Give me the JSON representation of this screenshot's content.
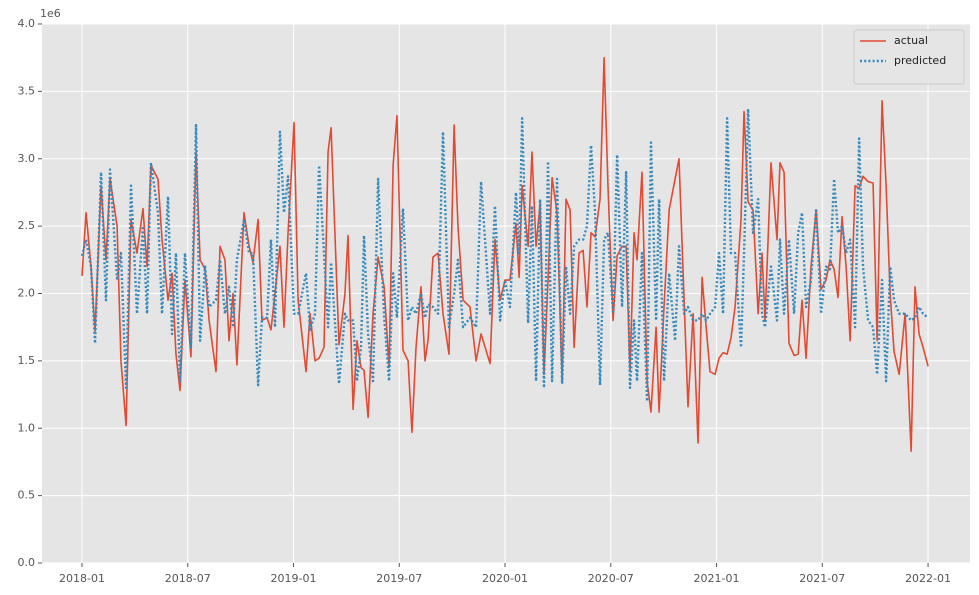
{
  "chart_data": {
    "type": "line",
    "y_offset_label": "1e6",
    "x": [
      0.0,
      0.23,
      0.51,
      0.74,
      1.08,
      1.36,
      1.59,
      1.99,
      2.21,
      2.5,
      2.78,
      3.12,
      3.46,
      3.69,
      3.91,
      4.31,
      4.54,
      4.88,
      5.11,
      5.33,
      5.56,
      5.84,
      6.18,
      6.47,
      6.7,
      6.98,
      7.21,
      7.6,
      7.83,
      8.11,
      8.34,
      8.57,
      8.79,
      9.19,
      9.48,
      9.7,
      9.99,
      10.21,
      10.5,
      10.72,
      10.95,
      11.23,
      11.46,
      11.69,
      12.03,
      12.26,
      12.71,
      12.94,
      13.22,
      13.45,
      13.73,
      13.96,
      14.13,
      14.58,
      14.92,
      15.09,
      15.38,
      15.6,
      15.83,
      16.0,
      16.23,
      16.51,
      16.8,
      17.14,
      17.42,
      17.65,
      17.87,
      18.21,
      18.5,
      18.72,
      18.95,
      19.23,
      19.46,
      19.63,
      19.91,
      20.2,
      20.48,
      20.82,
      21.11,
      21.33,
      21.62,
      22.01,
      22.36,
      22.64,
      23.15,
      23.43,
      23.72,
      24.0,
      24.28,
      24.62,
      24.8,
      24.97,
      25.31,
      25.53,
      25.76,
      25.99,
      26.21,
      26.44,
      26.67,
      26.95,
      27.24,
      27.46,
      27.69,
      27.92,
      28.2,
      28.43,
      28.65,
      28.88,
      29.11,
      29.39,
      29.62,
      29.84,
      30.13,
      30.36,
      30.64,
      30.87,
      31.09,
      31.32,
      31.49,
      31.77,
      32.06,
      32.28,
      32.57,
      32.74,
      33.02,
      33.31,
      33.65,
      33.87,
      34.16,
      34.38,
      34.67,
      34.95,
      35.18,
      35.41,
      35.63,
      35.92,
      36.14,
      36.37,
      36.6,
      36.82,
      37.05,
      37.39,
      37.56,
      37.79,
      38.07,
      38.36,
      38.58,
      38.75,
      39.09,
      39.43,
      39.6,
      39.83,
      40.11,
      40.4,
      40.63,
      40.85,
      41.08,
      41.36,
      41.65,
      41.93,
      42.21,
      42.44,
      42.67,
      42.89,
      43.12,
      43.35,
      43.58,
      43.86,
      44.09,
      44.31,
      44.6,
      44.88,
      45.11,
      45.39,
      45.62,
      45.85,
      46.07,
      46.36,
      46.7,
      47.04,
      47.26,
      47.49,
      47.72,
      48.0
    ],
    "series": [
      {
        "name": "actual",
        "color": "#E24A33",
        "style": "solid",
        "values": [
          2.13,
          2.6,
          2.2,
          1.72,
          2.8,
          2.25,
          2.85,
          2.5,
          1.5,
          1.02,
          2.55,
          2.3,
          2.63,
          2.2,
          2.95,
          2.85,
          2.4,
          1.95,
          2.15,
          1.55,
          1.28,
          2.1,
          1.53,
          3.05,
          2.25,
          2.18,
          1.8,
          1.42,
          2.35,
          2.25,
          1.65,
          2.0,
          1.47,
          2.6,
          2.35,
          2.23,
          2.55,
          1.8,
          1.82,
          1.73,
          2.0,
          2.35,
          1.75,
          2.45,
          3.27,
          1.95,
          1.42,
          1.85,
          1.5,
          1.52,
          1.6,
          3.05,
          3.23,
          1.62,
          2.0,
          2.43,
          1.14,
          1.65,
          1.45,
          1.43,
          1.08,
          1.85,
          2.27,
          2.05,
          1.45,
          2.95,
          3.32,
          1.58,
          1.5,
          0.97,
          1.6,
          2.05,
          1.5,
          1.65,
          2.27,
          2.3,
          1.85,
          1.55,
          3.25,
          2.5,
          1.95,
          1.9,
          1.5,
          1.7,
          1.48,
          2.4,
          1.95,
          2.1,
          2.1,
          2.52,
          2.12,
          2.8,
          2.35,
          3.05,
          2.35,
          2.67,
          1.4,
          2.1,
          2.86,
          2.6,
          1.35,
          2.7,
          2.62,
          1.6,
          2.3,
          2.32,
          1.9,
          2.45,
          2.42,
          2.7,
          3.75,
          2.8,
          1.8,
          2.28,
          2.35,
          2.35,
          1.42,
          2.45,
          2.25,
          2.9,
          1.35,
          1.12,
          1.75,
          1.12,
          1.9,
          2.62,
          2.85,
          3.0,
          1.95,
          1.16,
          1.85,
          0.89,
          2.12,
          1.75,
          1.42,
          1.4,
          1.52,
          1.56,
          1.55,
          1.67,
          1.9,
          2.55,
          3.35,
          2.68,
          2.62,
          1.85,
          2.3,
          1.8,
          2.97,
          2.4,
          2.97,
          2.9,
          1.63,
          1.54,
          1.55,
          1.95,
          1.52,
          2.2,
          2.62,
          2.03,
          2.1,
          2.25,
          2.18,
          1.97,
          2.57,
          2.2,
          1.65,
          2.8,
          2.78,
          2.87,
          2.83,
          2.82,
          1.65,
          3.43,
          2.8,
          2.0,
          1.57,
          1.4,
          1.85,
          0.83,
          2.05,
          1.7,
          1.6,
          1.46
        ]
      },
      {
        "name": "predicted",
        "color": "#348ABD",
        "style": "dotted",
        "values": [
          2.28,
          2.4,
          2.2,
          1.63,
          2.9,
          1.95,
          2.92,
          2.1,
          2.3,
          1.3,
          2.8,
          1.85,
          2.5,
          1.85,
          2.97,
          2.6,
          1.85,
          2.72,
          1.7,
          2.3,
          1.35,
          2.3,
          1.6,
          3.25,
          1.65,
          2.2,
          1.9,
          1.95,
          2.25,
          1.85,
          2.05,
          1.75,
          2.25,
          2.55,
          2.3,
          2.3,
          1.32,
          1.82,
          1.82,
          2.4,
          1.75,
          3.2,
          2.6,
          2.87,
          1.85,
          1.85,
          2.15,
          1.73,
          1.85,
          2.95,
          2.3,
          1.75,
          2.23,
          1.33,
          1.85,
          1.8,
          1.8,
          1.35,
          1.6,
          2.43,
          1.7,
          1.35,
          2.85,
          1.83,
          1.35,
          2.15,
          1.82,
          2.63,
          1.8,
          1.9,
          1.85,
          2.0,
          1.82,
          1.92,
          1.9,
          1.85,
          3.2,
          1.75,
          2.0,
          2.25,
          1.75,
          1.82,
          1.75,
          2.83,
          1.85,
          2.65,
          1.8,
          2.1,
          1.9,
          2.75,
          2.3,
          3.3,
          1.78,
          2.65,
          1.35,
          2.7,
          1.3,
          2.98,
          1.35,
          2.85,
          1.33,
          2.2,
          1.85,
          2.35,
          2.4,
          2.4,
          2.5,
          3.1,
          2.6,
          1.32,
          2.4,
          2.45,
          1.85,
          3.03,
          1.9,
          2.9,
          1.3,
          1.8,
          1.35,
          2.3,
          1.2,
          3.12,
          1.8,
          2.7,
          1.35,
          2.15,
          1.65,
          2.35,
          1.85,
          1.9,
          1.8,
          1.8,
          1.85,
          1.8,
          1.85,
          1.9,
          2.3,
          1.85,
          3.3,
          2.3,
          2.3,
          1.6,
          2.3,
          3.37,
          2.45,
          2.7,
          1.85,
          1.75,
          2.2,
          1.8,
          2.4,
          1.85,
          2.4,
          1.85,
          2.45,
          2.6,
          1.9,
          2.1,
          2.63,
          1.85,
          2.2,
          2.18,
          2.85,
          2.45,
          2.5,
          2.3,
          2.4,
          1.75,
          3.15,
          2.2,
          1.8,
          1.75,
          1.4,
          2.1,
          1.35,
          2.2,
          1.95,
          1.85,
          1.85,
          1.8,
          1.82,
          1.9,
          1.85,
          1.82
        ]
      }
    ],
    "xlim": [
      -2.27,
      50.38
    ],
    "xticks": [
      {
        "value": 0,
        "label": "2018-01"
      },
      {
        "value": 6,
        "label": "2018-07"
      },
      {
        "value": 12,
        "label": "2019-01"
      },
      {
        "value": 18,
        "label": "2019-07"
      },
      {
        "value": 24,
        "label": "2020-01"
      },
      {
        "value": 30,
        "label": "2020-07"
      },
      {
        "value": 36,
        "label": "2021-01"
      },
      {
        "value": 42,
        "label": "2021-07"
      },
      {
        "value": 48,
        "label": "2022-01"
      }
    ],
    "ylim": [
      0,
      4.0
    ],
    "yticks": [
      {
        "value": 0,
        "label": "0.0"
      },
      0.5,
      {
        "value": 1,
        "label": "1.0"
      },
      1.5,
      {
        "value": 2,
        "label": "2.0"
      },
      2.5,
      {
        "value": 3,
        "label": "3.0"
      },
      3.5,
      {
        "value": 4,
        "label": "4.0"
      }
    ],
    "grid": true,
    "legend": "upper right"
  }
}
